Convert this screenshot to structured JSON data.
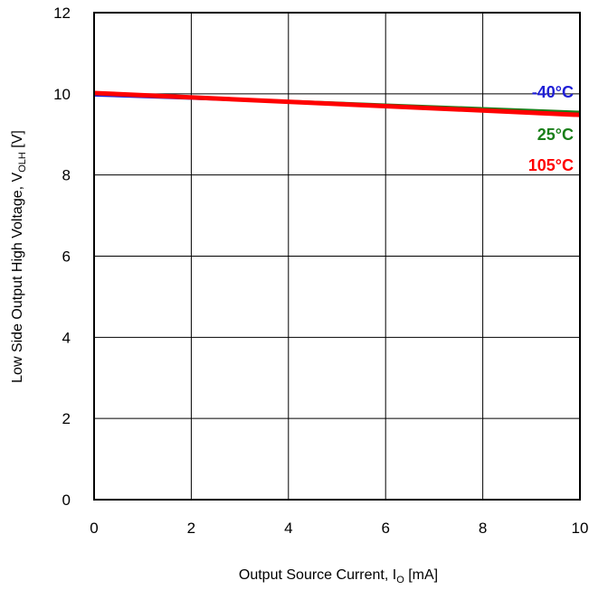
{
  "chart_data": {
    "type": "line",
    "xlabel": "Output Source Current, I",
    "xlabel_sub": "O",
    "xlabel_unit": " [mA]",
    "ylabel": "Low Side Output High Voltage, V",
    "ylabel_sub": "OLH",
    "ylabel_unit": " [V]",
    "xlim": [
      0,
      10
    ],
    "ylim": [
      0,
      12
    ],
    "x_ticks": [
      "0",
      "2",
      "4",
      "6",
      "8",
      "10"
    ],
    "y_ticks": [
      "0",
      "2",
      "4",
      "6",
      "8",
      "10",
      "12"
    ],
    "grid": true,
    "series": [
      {
        "name": "-40°C",
        "color": "#1f1fd6",
        "x": [
          0,
          10
        ],
        "y": [
          9.95,
          9.55
        ]
      },
      {
        "name": "25°C",
        "color": "#1a7f1a",
        "x": [
          0,
          10
        ],
        "y": [
          10.0,
          9.55
        ]
      },
      {
        "name": "105°C",
        "color": "#ff0000",
        "x": [
          0,
          10
        ],
        "y": [
          10.02,
          9.48
        ]
      }
    ]
  }
}
